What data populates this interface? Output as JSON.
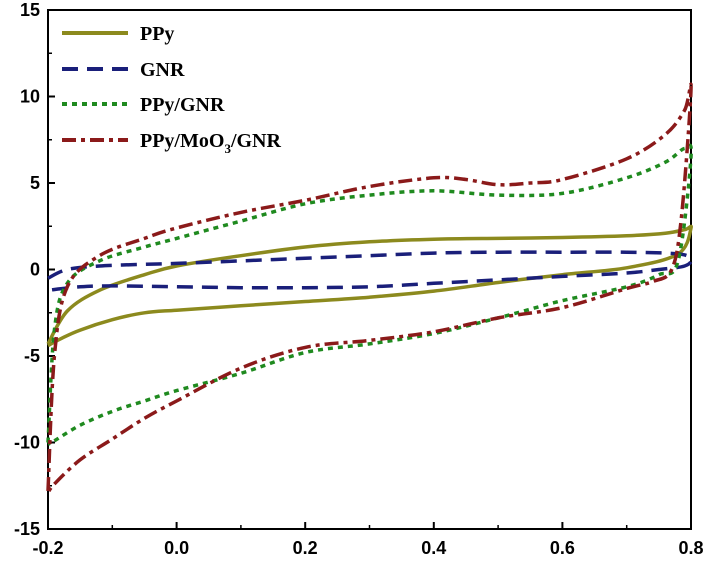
{
  "chart_data": {
    "type": "line",
    "title": "",
    "xlabel": "",
    "ylabel": "",
    "xlim": [
      -0.2,
      0.8
    ],
    "ylim": [
      -15,
      15
    ],
    "xticks": [
      "-0.2",
      "0.0",
      "0.2",
      "0.4",
      "0.6",
      "0.8"
    ],
    "yticks": [
      "15",
      "10",
      "5",
      "0",
      "-5",
      "-10",
      "-15"
    ],
    "legend_position": "top-left",
    "series": [
      {
        "name": "PPy",
        "color": "#8c8a1e",
        "dash": "solid",
        "x": [
          -0.2,
          -0.17,
          -0.12,
          -0.05,
          0.0,
          0.1,
          0.2,
          0.3,
          0.4,
          0.5,
          0.6,
          0.7,
          0.76,
          0.79,
          0.8,
          0.78,
          0.7,
          0.6,
          0.5,
          0.4,
          0.3,
          0.2,
          0.1,
          0.0,
          -0.05,
          -0.1,
          -0.15,
          -0.18,
          -0.2
        ],
        "y": [
          -4.3,
          -2.4,
          -1.2,
          -0.3,
          0.2,
          0.8,
          1.3,
          1.6,
          1.75,
          1.8,
          1.85,
          1.95,
          2.1,
          2.3,
          2.4,
          0.9,
          0.1,
          -0.3,
          -0.75,
          -1.25,
          -1.6,
          -1.85,
          -2.1,
          -2.35,
          -2.5,
          -2.9,
          -3.5,
          -4.0,
          -4.4
        ]
      },
      {
        "name": "GNR",
        "color": "#1a1f7a",
        "dash": "long-dash",
        "x": [
          -0.2,
          -0.17,
          -0.12,
          -0.05,
          0.0,
          0.1,
          0.2,
          0.3,
          0.4,
          0.5,
          0.6,
          0.7,
          0.78,
          0.8,
          0.79,
          0.75,
          0.7,
          0.6,
          0.5,
          0.4,
          0.3,
          0.2,
          0.1,
          0.0,
          -0.1,
          -0.15,
          -0.2
        ],
        "y": [
          -0.5,
          0.0,
          0.2,
          0.3,
          0.35,
          0.5,
          0.65,
          0.8,
          0.95,
          1.0,
          1.0,
          1.0,
          0.9,
          0.6,
          0.2,
          0.0,
          -0.2,
          -0.4,
          -0.6,
          -0.8,
          -1.0,
          -1.05,
          -1.05,
          -1.0,
          -0.95,
          -1.0,
          -1.2
        ]
      },
      {
        "name": "PPy/GNR",
        "color": "#1f8a1f",
        "dash": "dotted",
        "x": [
          -0.2,
          -0.19,
          -0.17,
          -0.12,
          -0.05,
          0.0,
          0.1,
          0.2,
          0.3,
          0.4,
          0.5,
          0.6,
          0.7,
          0.76,
          0.79,
          0.8,
          0.78,
          0.75,
          0.7,
          0.6,
          0.5,
          0.4,
          0.3,
          0.2,
          0.1,
          0.0,
          -0.05,
          -0.1,
          -0.15,
          -0.19,
          -0.2
        ],
        "y": [
          -10.0,
          -3.5,
          -0.8,
          0.5,
          1.3,
          1.8,
          2.8,
          3.8,
          4.3,
          4.55,
          4.3,
          4.4,
          5.3,
          6.2,
          7.0,
          6.5,
          0.5,
          -0.3,
          -1.0,
          -1.8,
          -2.8,
          -3.7,
          -4.3,
          -4.8,
          -6.0,
          -7.0,
          -7.6,
          -8.2,
          -9.0,
          -9.9,
          -10.1
        ]
      },
      {
        "name": "PPy/MoO3/GNR",
        "color": "#8b1a1a",
        "dash": "dash-dot",
        "x": [
          -0.2,
          -0.19,
          -0.17,
          -0.12,
          -0.05,
          0.0,
          0.1,
          0.2,
          0.3,
          0.4,
          0.45,
          0.5,
          0.55,
          0.6,
          0.7,
          0.76,
          0.79,
          0.8,
          0.785,
          0.77,
          0.74,
          0.7,
          0.6,
          0.5,
          0.4,
          0.3,
          0.2,
          0.1,
          0.0,
          -0.05,
          -0.1,
          -0.15,
          -0.19,
          -0.2
        ],
        "y": [
          -12.8,
          -5.0,
          -1.0,
          0.8,
          1.8,
          2.4,
          3.3,
          4.0,
          4.8,
          5.3,
          5.2,
          4.9,
          5.0,
          5.2,
          6.4,
          7.8,
          9.2,
          10.4,
          3.0,
          0.0,
          -0.7,
          -1.1,
          -2.2,
          -2.8,
          -3.6,
          -4.1,
          -4.5,
          -5.7,
          -7.6,
          -8.6,
          -9.8,
          -11.0,
          -12.4,
          -12.9
        ]
      }
    ]
  },
  "legend": {
    "items": [
      {
        "main": "PPy",
        "sub": "",
        "tail": ""
      },
      {
        "main": "GNR",
        "sub": "",
        "tail": ""
      },
      {
        "main": "PPy/GNR",
        "sub": "",
        "tail": ""
      },
      {
        "main": "PPy/MoO",
        "sub": "3",
        "tail": "/GNR"
      }
    ]
  }
}
